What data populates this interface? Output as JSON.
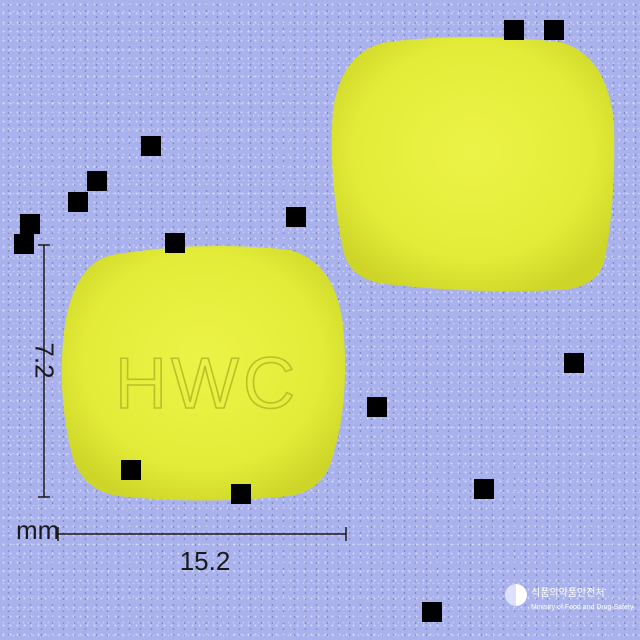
{
  "image": {
    "imprint": "HWC",
    "dimension_vertical": "7.2",
    "dimension_horizontal": "15.2",
    "unit": "mm",
    "logo_korean": "식품의약품안전처",
    "logo_english": "Ministry of Food and Drug Safety"
  },
  "colors": {
    "background": "#a9b2ec",
    "tablet": "#e6ee3c",
    "tablet_shade": "#c9d227",
    "ink": "#1a1a1a"
  }
}
